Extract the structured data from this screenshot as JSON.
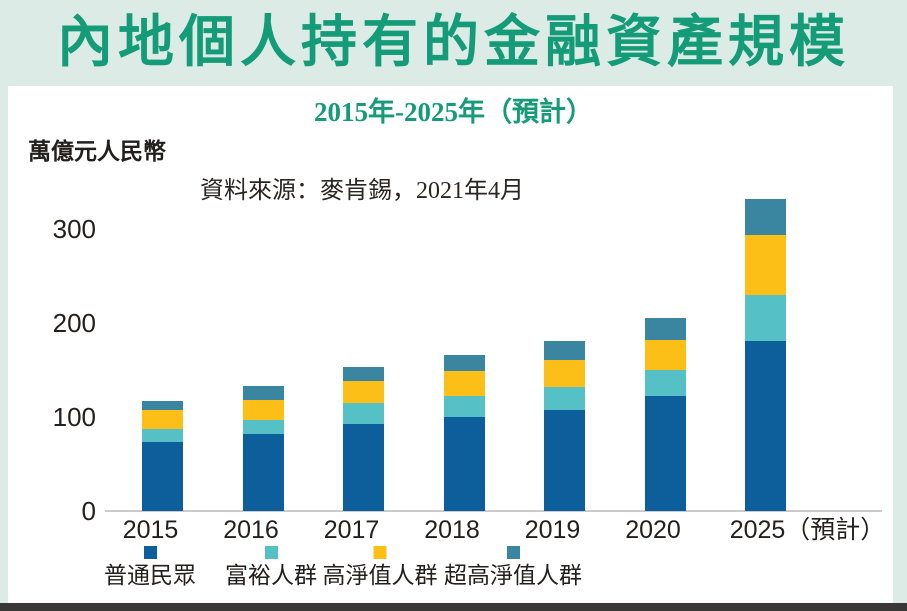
{
  "title": "內地個人持有的金融資產規模",
  "subtitle": "2015年-2025年（預計）",
  "unit_label": "萬億元人民幣",
  "source": "資料來源：麥肯錫，2021年4月",
  "colors": {
    "title_green": "#149b78",
    "band_background": "#dcebe6",
    "ordinary": "#0d5f9b",
    "affluent": "#55c1c6",
    "high_net_worth": "#fcbf17",
    "ultra_high_net_worth": "#3a85a0",
    "axis_line": "#cbcbcb",
    "footer_bar": "#3a3836"
  },
  "chart_data": {
    "type": "bar",
    "stacked": true,
    "title": "內地個人持有的金融資產規模",
    "subtitle": "2015年-2025年（預計）",
    "ylabel": "萬億元人民幣",
    "xlabel": "",
    "categories": [
      "2015",
      "2016",
      "2017",
      "2018",
      "2019",
      "2020",
      "2025（預計）"
    ],
    "series": [
      {
        "name": "普通民眾",
        "color_key": "ordinary",
        "values": [
          73,
          82,
          93,
          100,
          107,
          122,
          181
        ]
      },
      {
        "name": "富裕人群",
        "color_key": "affluent",
        "values": [
          14,
          15,
          22,
          22,
          25,
          28,
          49
        ]
      },
      {
        "name": "高淨值人群",
        "color_key": "high_net_worth",
        "values": [
          20,
          21,
          23,
          27,
          29,
          32,
          64
        ]
      },
      {
        "name": "超高淨值人群",
        "color_key": "ultra_high_net_worth",
        "values": [
          10,
          15,
          15,
          17,
          20,
          23,
          38
        ]
      }
    ],
    "totals": [
      117,
      133,
      153,
      166,
      181,
      205,
      332
    ],
    "yticks": [
      0,
      100,
      200,
      300
    ],
    "ylim": [
      0,
      350
    ],
    "grid": false,
    "legend_position": "bottom"
  }
}
